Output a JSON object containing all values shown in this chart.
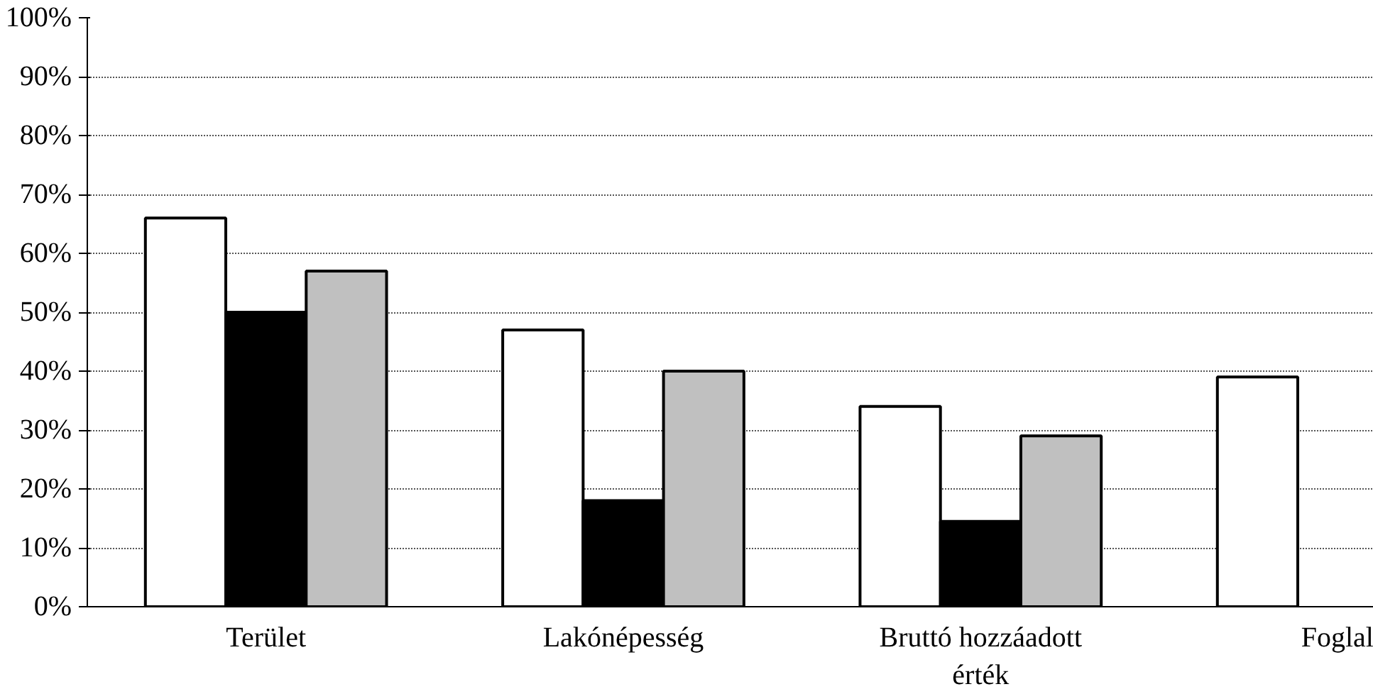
{
  "chart_data": {
    "type": "bar",
    "categories": [
      "Terület",
      "Lakónépesség",
      "Bruttó hozzáadott érték",
      "Foglal"
    ],
    "series": [
      {
        "color": "#ffffff",
        "values": [
          66,
          47,
          34,
          39
        ]
      },
      {
        "color": "#000000",
        "values": [
          50,
          18,
          14.5,
          null
        ]
      },
      {
        "color": "#c0c0c0",
        "values": [
          57,
          40,
          29,
          null
        ]
      }
    ],
    "ylim": [
      0,
      100
    ],
    "yticks": [
      {
        "value": 0,
        "label": "0%"
      },
      {
        "value": 10,
        "label": "10%"
      },
      {
        "value": 20,
        "label": "20%"
      },
      {
        "value": 30,
        "label": "30%"
      },
      {
        "value": 40,
        "label": "40%"
      },
      {
        "value": 50,
        "label": "50%"
      },
      {
        "value": 60,
        "label": "60%"
      },
      {
        "value": 70,
        "label": "70%"
      },
      {
        "value": 80,
        "label": "80%"
      },
      {
        "value": 90,
        "label": "90%"
      },
      {
        "value": 100,
        "label": "100%"
      }
    ],
    "grid": "y"
  }
}
